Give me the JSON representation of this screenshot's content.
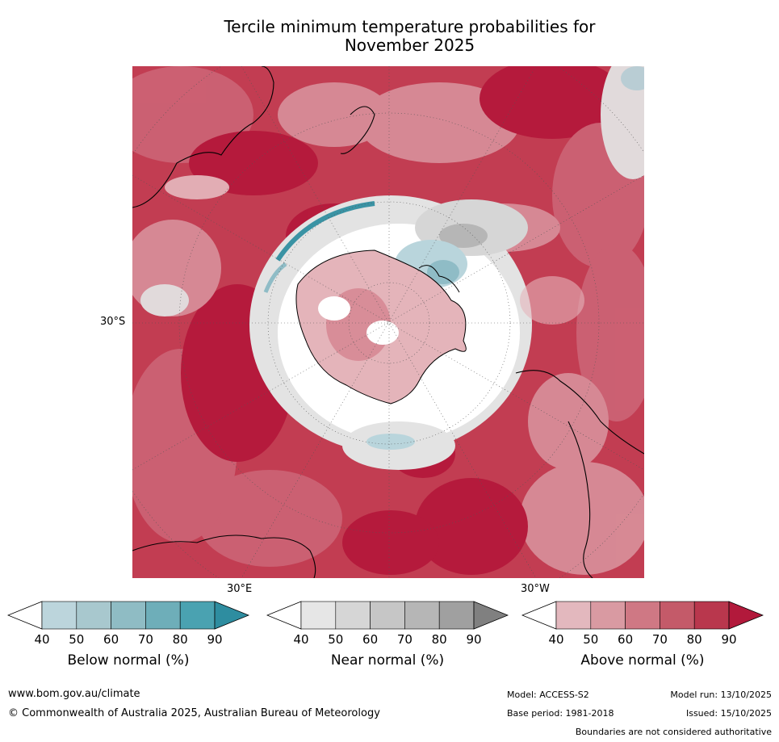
{
  "title_line1": "Tercile minimum temperature probabilities for",
  "title_line2": "November 2025",
  "map": {
    "projection": "south-polar",
    "lat_labels": {
      "west": "30°S",
      "bottom_left": "30°E",
      "bottom_right": "30°W"
    },
    "colors": {
      "above_90": "#b5193b",
      "above_80": "#c23d52",
      "above_70": "#cc6274",
      "above_60": "#d88d98",
      "above_50": "#e4b4ba",
      "near_40": "#e3e3e3",
      "near_60": "#c8c8c8",
      "below_40": "#b9d5dc",
      "below_70": "#8fbcc6",
      "below_90": "#3a93a4",
      "coastline": "#000000"
    }
  },
  "colorbars": [
    {
      "label": "Below normal (%)",
      "ticks": [
        "40",
        "50",
        "60",
        "70",
        "80",
        "90"
      ],
      "colors": [
        "#ffffff",
        "#bcd5dc",
        "#a8c8ce",
        "#8fbcc4",
        "#6eaeb9",
        "#4aa2b1",
        "#2e8da0"
      ]
    },
    {
      "label": "Near normal (%)",
      "ticks": [
        "40",
        "50",
        "60",
        "70",
        "80",
        "90"
      ],
      "colors": [
        "#ffffff",
        "#e6e6e6",
        "#d6d6d6",
        "#c6c6c6",
        "#b6b6b6",
        "#a0a0a0",
        "#808080"
      ]
    },
    {
      "label": "Above normal (%)",
      "ticks": [
        "40",
        "50",
        "60",
        "70",
        "80",
        "90"
      ],
      "colors": [
        "#ffffff",
        "#e3b8be",
        "#d99aa2",
        "#cf7884",
        "#c45a69",
        "#b9374d",
        "#b2193b"
      ]
    }
  ],
  "footer": {
    "website": "www.bom.gov.au/climate",
    "copyright": "© Commonwealth of Australia 2025, Australian Bureau of Meteorology",
    "model": "Model: ACCESS-S2",
    "base_period": "Base period: 1981-2018",
    "model_run": "Model run: 13/10/2025",
    "issued": "Issued: 15/10/2025",
    "disclaimer": "Boundaries are not considered authoritative"
  }
}
